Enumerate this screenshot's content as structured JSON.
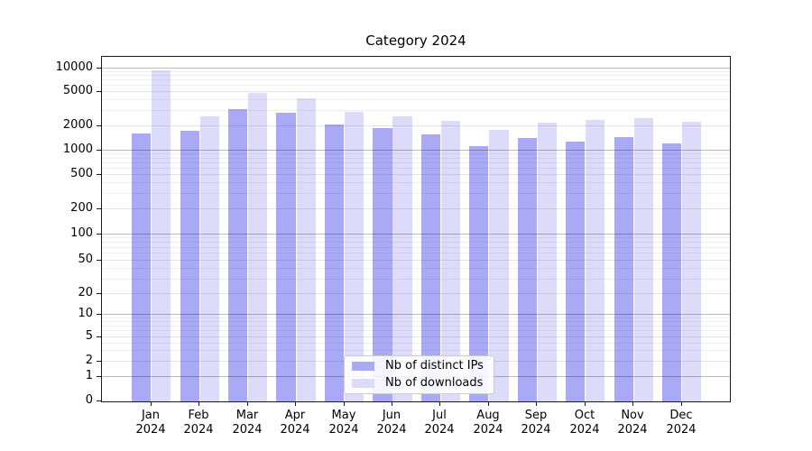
{
  "chart_data": {
    "type": "bar",
    "title": "Category 2024",
    "categories": [
      "Jan",
      "Feb",
      "Mar",
      "Apr",
      "May",
      "Jun",
      "Jul",
      "Aug",
      "Sep",
      "Oct",
      "Nov",
      "Dec"
    ],
    "x_tick_year": "2024",
    "series": [
      {
        "name": "Nb of distinct IPs",
        "color": "#a9a9f5",
        "values": [
          1600,
          1700,
          3100,
          2800,
          2050,
          1850,
          1550,
          1100,
          1400,
          1260,
          1430,
          1200
        ]
      },
      {
        "name": "Nb of downloads",
        "color": "#dcdcfa",
        "values": [
          9200,
          2550,
          4800,
          4100,
          2870,
          2550,
          2260,
          1760,
          2150,
          2310,
          2420,
          2200
        ]
      }
    ],
    "y_axis": {
      "scale": "symlog",
      "ticks": [
        0,
        1,
        2,
        5,
        10,
        20,
        50,
        100,
        200,
        500,
        1000,
        2000,
        5000,
        10000
      ],
      "ylim": [
        0,
        14000
      ],
      "minor_tick_multipliers": [
        3,
        4,
        6,
        7,
        8,
        9
      ]
    },
    "grid": true,
    "legend_position": "lower-center",
    "colors": {
      "spine": "#1a1a1a",
      "background": "#ffffff"
    }
  }
}
